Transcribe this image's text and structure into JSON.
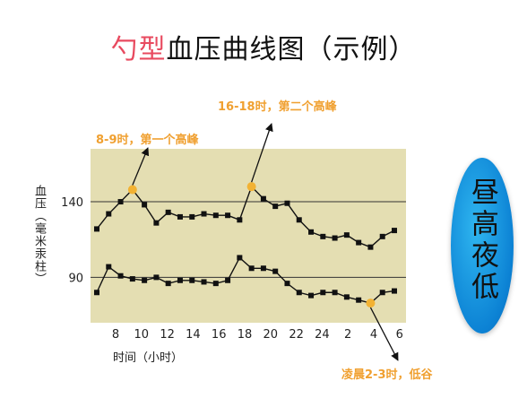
{
  "title": {
    "accent": "勺型",
    "rest": "血压曲线图（示例）"
  },
  "badge": {
    "text": "昼高夜低"
  },
  "colors": {
    "accent": "#e84a5f",
    "annotation": "#f0a030",
    "plot_bg": "#e4deb2",
    "badge": "#1a9ae0",
    "highlight_point": "#f2b233"
  },
  "chart_data": {
    "type": "line",
    "xlabel": "时间（小时）",
    "ylabel": "血压（毫米汞柱）",
    "x_ticks": [
      "8",
      "10",
      "12",
      "14",
      "16",
      "18",
      "20",
      "22",
      "24",
      "2",
      "4",
      "6"
    ],
    "y_ticks": [
      90,
      140
    ],
    "ylim": [
      60,
      175
    ],
    "grid": "horizontal reference lines at 90 and 140",
    "series": [
      {
        "values": [
          122,
          132,
          140,
          148,
          138,
          126,
          133,
          130,
          130,
          132,
          131,
          131,
          128,
          150,
          142,
          137,
          139,
          128,
          120,
          117,
          116,
          118,
          113,
          110,
          117,
          121
        ]
      },
      {
        "values": [
          80,
          97,
          91,
          89,
          88,
          90,
          86,
          88,
          88,
          87,
          86,
          88,
          103,
          96,
          96,
          94,
          86,
          80,
          78,
          80,
          80,
          77,
          75,
          73,
          80,
          81
        ]
      }
    ],
    "annotations": [
      {
        "text": "8-9时，第一个高峰",
        "series": 0,
        "point": 3
      },
      {
        "text": "16-18时，第二个高峰",
        "series": 0,
        "point": 13
      },
      {
        "text": "凌晨2-3时，低谷",
        "series": 1,
        "point": 23
      }
    ]
  }
}
